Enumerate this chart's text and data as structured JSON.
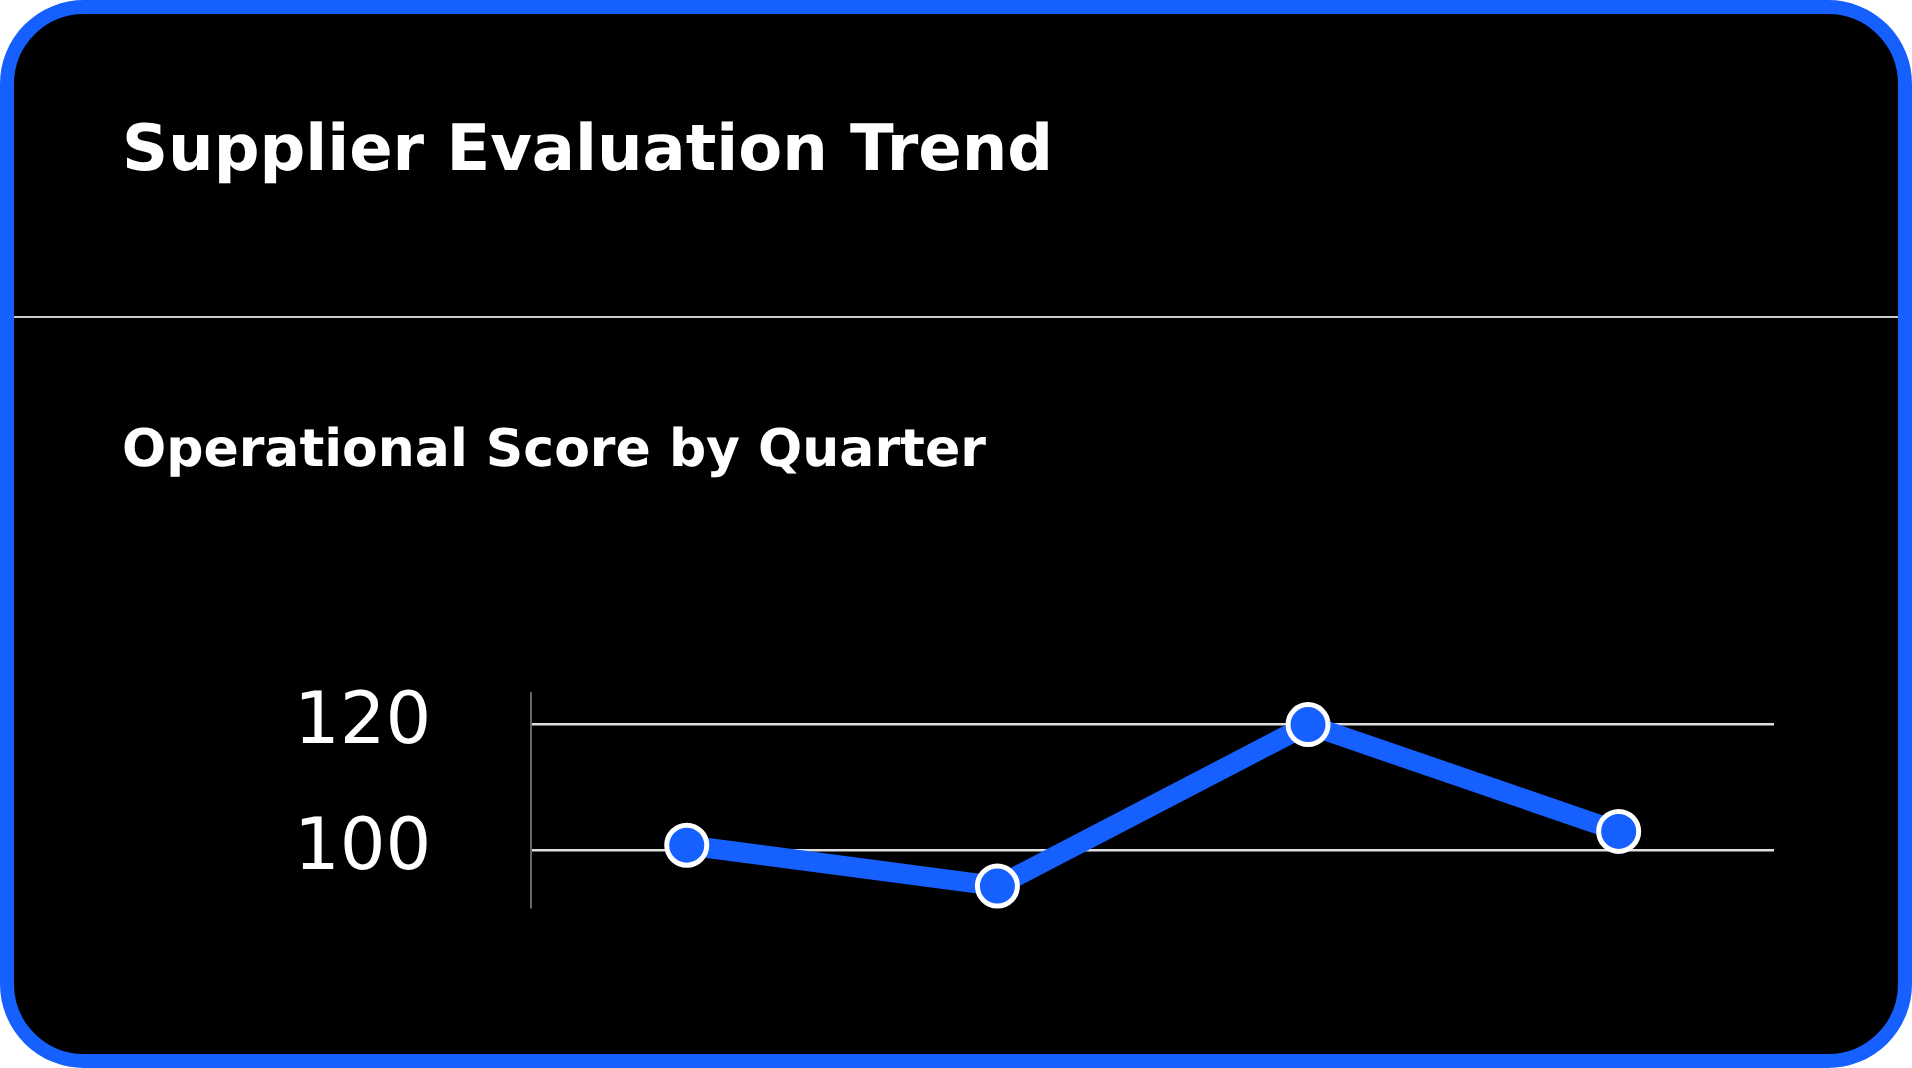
{
  "chart_data": {
    "type": "line",
    "title": "Supplier Evaluation Trend",
    "subtitle": "Operational Score by Quarter",
    "categories": [
      null,
      null,
      null,
      null
    ],
    "series": [
      {
        "color": "#1560ff",
        "values": [
          100.8,
          94.3,
          120,
          103
        ]
      }
    ],
    "ylim": [
      91,
      125
    ],
    "yticks": [
      100,
      120
    ],
    "grid": "y",
    "tick_labels": "y",
    "marker": "circle",
    "line_style": "solid"
  }
}
